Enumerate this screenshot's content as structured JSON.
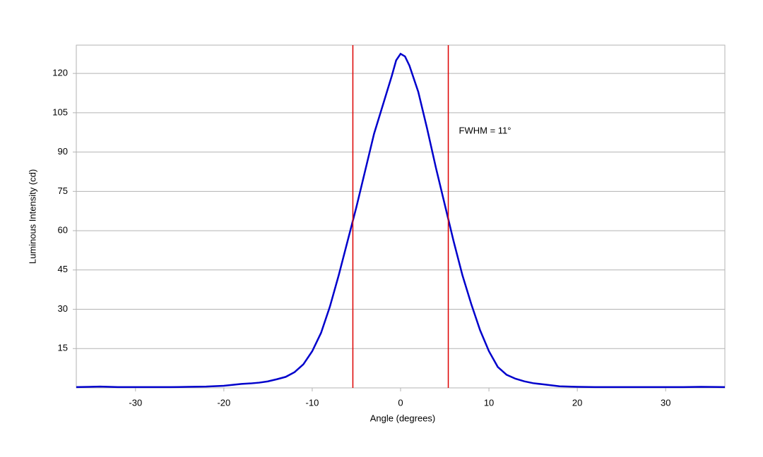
{
  "chart_data": {
    "type": "line",
    "xlabel": "Angle (degrees)",
    "ylabel": "Luminous Intensity (cd)",
    "x": [
      -36.7,
      -34,
      -32,
      -30,
      -28,
      -26,
      -24,
      -22,
      -20,
      -18,
      -17,
      -16,
      -15,
      -14,
      -13,
      -12,
      -11,
      -10,
      -9,
      -8,
      -7,
      -6,
      -5,
      -4,
      -3,
      -2,
      -1,
      -0.5,
      0,
      0.5,
      1,
      2,
      3,
      4,
      5,
      6,
      7,
      8,
      9,
      10,
      11,
      12,
      13,
      14,
      15,
      16,
      17,
      18,
      20,
      22,
      24,
      26,
      28,
      30,
      32,
      34,
      36.7
    ],
    "series": [
      {
        "color": "#0000cc",
        "values": [
          0.3,
          0.5,
          0.3,
          0.3,
          0.3,
          0.3,
          0.4,
          0.5,
          0.8,
          1.5,
          1.7,
          2,
          2.5,
          3.3,
          4.2,
          6,
          9,
          14,
          21,
          31,
          43,
          56,
          69,
          83,
          97,
          108,
          119,
          125,
          127.5,
          126.5,
          123,
          113,
          99,
          84,
          70,
          56,
          43,
          32,
          22,
          14,
          8,
          5,
          3.5,
          2.5,
          1.8,
          1.4,
          1,
          0.6,
          0.4,
          0.3,
          0.3,
          0.3,
          0.3,
          0.3,
          0.3,
          0.4,
          0.3
        ]
      }
    ],
    "vlines": [
      {
        "x": -5.4,
        "color": "#dd0000"
      },
      {
        "x": 5.4,
        "color": "#dd0000"
      }
    ],
    "annotation": {
      "text": "FWHM = 11°",
      "x": 6.6,
      "y": 97.9
    },
    "xlim": [
      -36.7,
      36.7
    ],
    "xticks": [
      -30,
      -20,
      -10,
      0,
      10,
      20,
      30
    ],
    "ylim": [
      0,
      130.8
    ],
    "yticks": [
      15,
      30,
      45,
      60,
      75,
      90,
      105,
      120
    ],
    "grid": true
  }
}
